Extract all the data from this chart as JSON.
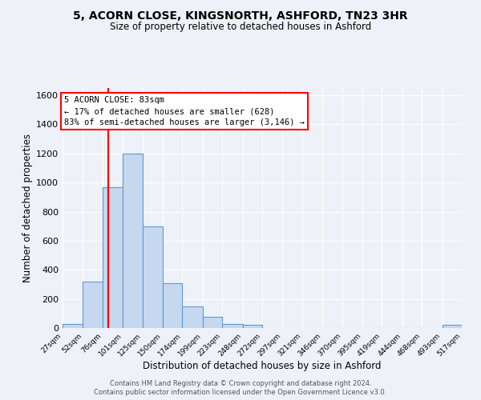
{
  "title": "5, ACORN CLOSE, KINGSNORTH, ASHFORD, TN23 3HR",
  "subtitle": "Size of property relative to detached houses in Ashford",
  "xlabel": "Distribution of detached houses by size in Ashford",
  "ylabel": "Number of detached properties",
  "bin_edges": [
    27,
    52,
    76,
    101,
    125,
    150,
    174,
    199,
    223,
    248,
    272,
    297,
    321,
    346,
    370,
    395,
    419,
    444,
    468,
    493,
    517
  ],
  "bar_heights": [
    30,
    320,
    970,
    1200,
    700,
    310,
    150,
    75,
    30,
    20,
    0,
    0,
    0,
    0,
    0,
    0,
    0,
    0,
    0,
    20
  ],
  "bar_color": "#c5d8f0",
  "bar_edgecolor": "#5b9bd5",
  "vline_x": 83,
  "vline_color": "red",
  "annotation_title": "5 ACORN CLOSE: 83sqm",
  "annotation_line1": "← 17% of detached houses are smaller (628)",
  "annotation_line2": "83% of semi-detached houses are larger (3,146) →",
  "annotation_box_edgecolor": "red",
  "annotation_box_facecolor": "white",
  "ylim": [
    0,
    1650
  ],
  "yticks": [
    0,
    200,
    400,
    600,
    800,
    1000,
    1200,
    1400,
    1600
  ],
  "footer1": "Contains HM Land Registry data © Crown copyright and database right 2024.",
  "footer2": "Contains public sector information licensed under the Open Government Licence v3.0.",
  "bg_color": "#eef2f8",
  "grid_color": "#ffffff",
  "tick_labels": [
    "27sqm",
    "52sqm",
    "76sqm",
    "101sqm",
    "125sqm",
    "150sqm",
    "174sqm",
    "199sqm",
    "223sqm",
    "248sqm",
    "272sqm",
    "297sqm",
    "321sqm",
    "346sqm",
    "370sqm",
    "395sqm",
    "419sqm",
    "444sqm",
    "468sqm",
    "493sqm",
    "517sqm"
  ]
}
